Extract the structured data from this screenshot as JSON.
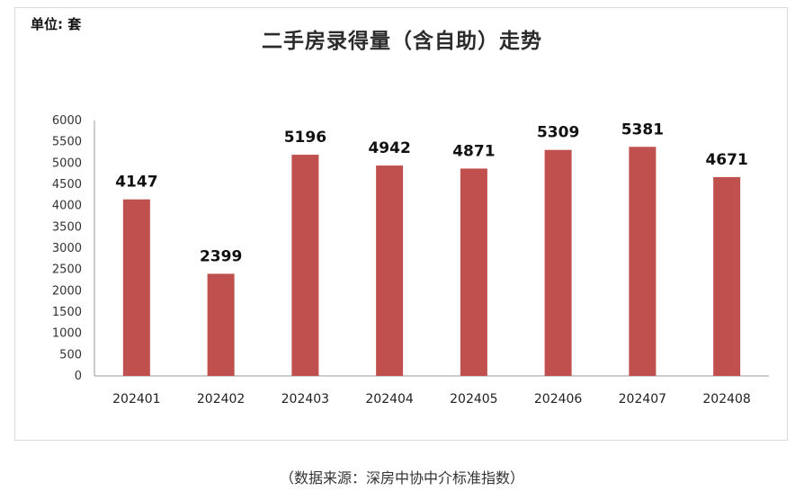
{
  "chart_data": {
    "type": "bar",
    "title": "二手房录得量（含自助）走势",
    "unit_label": "单位: 套",
    "categories": [
      "202401",
      "202402",
      "202403",
      "202404",
      "202405",
      "202406",
      "202407",
      "202408"
    ],
    "values": [
      4147,
      2399,
      5196,
      4942,
      4871,
      5309,
      5381,
      4671
    ],
    "ylim": [
      0,
      6000
    ],
    "yticks": [
      0,
      500,
      1000,
      1500,
      2000,
      2500,
      3000,
      3500,
      4000,
      4500,
      5000,
      5500,
      6000
    ],
    "bar_color": "#c0504d",
    "grid": false,
    "legend": "none"
  },
  "source_note": "（数据来源：深房中协中介标准指数）"
}
